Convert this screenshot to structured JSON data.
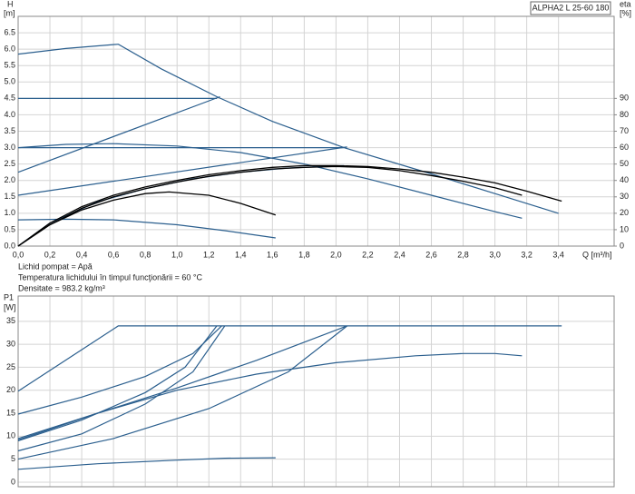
{
  "chart_data": [
    {
      "type": "line",
      "title": "ALPHA2 L 25-60 180",
      "ylabel": "H",
      "yunit": "[m]",
      "y2label": "eta",
      "y2unit": "[%]",
      "xlabel": "Q [m³/h]",
      "notes": [
        "Lichid pompat = Apă",
        "Temperatura lichidului în timpul funcţionării = 60 °C",
        "Densitate = 983.2 kg/m³"
      ],
      "xlim": [
        0,
        3.75
      ],
      "ylim": [
        0,
        7
      ],
      "y2lim": [
        0,
        140
      ],
      "grid": true,
      "xticks": [
        {
          "value": 0,
          "label": "0,0"
        },
        {
          "value": 0.2,
          "label": "0,2"
        },
        {
          "value": 0.4,
          "label": "0,4"
        },
        {
          "value": 0.6,
          "label": "0,6"
        },
        {
          "value": 0.8,
          "label": "0,8"
        },
        {
          "value": 1.0,
          "label": "1,0"
        },
        {
          "value": 1.2,
          "label": "1,2"
        },
        {
          "value": 1.4,
          "label": "1,4"
        },
        {
          "value": 1.6,
          "label": "1,6"
        },
        {
          "value": 1.8,
          "label": "1,8"
        },
        {
          "value": 2.0,
          "label": "2,0"
        },
        {
          "value": 2.2,
          "label": "2,2"
        },
        {
          "value": 2.4,
          "label": "2,4"
        },
        {
          "value": 2.6,
          "label": "2,6"
        },
        {
          "value": 2.8,
          "label": "2,8"
        },
        {
          "value": 3.0,
          "label": "3,0"
        },
        {
          "value": 3.2,
          "label": "3,2"
        },
        {
          "value": 3.4,
          "label": "3,4"
        }
      ],
      "yticks": [
        {
          "value": 0,
          "label": "0.0"
        },
        0.5,
        {
          "value": 1,
          "label": "1.0"
        },
        1.5,
        {
          "value": 2,
          "label": "2.0"
        },
        2.5,
        {
          "value": 3,
          "label": "3.0"
        },
        3.5,
        {
          "value": 4,
          "label": "4.0"
        },
        4.5,
        {
          "value": 5,
          "label": "5.0"
        },
        5.5,
        {
          "value": 6,
          "label": "6.0"
        },
        6.5
      ],
      "y2ticks": [
        0,
        10,
        20,
        30,
        40,
        50,
        60,
        70,
        80,
        90
      ],
      "series": [
        {
          "color": "#2b5f8e",
          "x": [
            0,
            0.3,
            0.63,
            0.9,
            1.25,
            1.6,
            2.05,
            2.6,
            3.0,
            3.4
          ],
          "values": [
            5.85,
            6.02,
            6.15,
            5.4,
            4.55,
            3.8,
            3.0,
            2.2,
            1.6,
            1.0
          ]
        },
        {
          "color": "#2b5f8e",
          "x": [
            0,
            1.25
          ],
          "values": [
            4.5,
            4.5
          ]
        },
        {
          "color": "#2b5f8e",
          "x": [
            0,
            2.05
          ],
          "values": [
            3.0,
            3.0
          ]
        },
        {
          "color": "#2b5f8e",
          "x": [
            0,
            1.27
          ],
          "values": [
            2.25,
            4.55
          ]
        },
        {
          "color": "#2b5f8e",
          "x": [
            0,
            2.07
          ],
          "values": [
            1.55,
            3.02
          ]
        },
        {
          "color": "#2b5f8e",
          "x": [
            0,
            0.3,
            0.6,
            1.0,
            1.4,
            1.8,
            2.2,
            2.6,
            3.0,
            3.17
          ],
          "values": [
            3.0,
            3.1,
            3.12,
            3.05,
            2.85,
            2.5,
            2.05,
            1.55,
            1.05,
            0.85
          ]
        },
        {
          "color": "#2b5f8e",
          "x": [
            0,
            0.3,
            0.6,
            1.0,
            1.3,
            1.62
          ],
          "values": [
            0.8,
            0.82,
            0.8,
            0.65,
            0.47,
            0.25
          ]
        },
        {
          "color": "#2b5f8e",
          "x": [
            0,
            0.2,
            0.5,
            0.8,
            1.1,
            1.4,
            1.7,
            2.05
          ],
          "values": [
            0,
            0.7,
            1.35,
            1.75,
            2.05,
            2.25,
            2.38,
            2.45
          ]
        },
        {
          "color": "#000000",
          "axis": "y2",
          "x": [
            0,
            0.2,
            0.4,
            0.6,
            0.8,
            1.0,
            1.2,
            1.4,
            1.6,
            1.8,
            2.0,
            2.2,
            2.4,
            2.6,
            2.8,
            3.0,
            3.2,
            3.42
          ],
          "values": [
            0,
            14,
            24,
            31,
            36,
            40,
            43.5,
            46,
            48,
            49,
            49,
            48.5,
            47,
            45,
            42,
            38.5,
            33.5,
            27.4
          ]
        },
        {
          "color": "#000000",
          "axis": "y2",
          "x": [
            0,
            0.2,
            0.4,
            0.6,
            0.8,
            1.0,
            1.2,
            1.4,
            1.6,
            1.8,
            2.0,
            2.2,
            2.4,
            2.6,
            2.8,
            3.0,
            3.17
          ],
          "values": [
            0,
            13,
            23,
            30,
            35,
            39,
            42.5,
            45,
            47,
            48,
            48.5,
            48,
            46,
            43,
            39.5,
            35.5,
            31
          ]
        },
        {
          "color": "#000000",
          "axis": "y2",
          "x": [
            0,
            0.2,
            0.4,
            0.6,
            0.8,
            0.95,
            1.2,
            1.4,
            1.62
          ],
          "values": [
            0,
            13,
            22,
            28,
            32,
            33,
            31,
            26,
            19
          ]
        }
      ]
    },
    {
      "type": "line",
      "ylabel": "P1",
      "yunit": "[W]",
      "xlim": [
        0,
        3.75
      ],
      "ylim": [
        -1,
        40.5
      ],
      "grid": true,
      "yticks": [
        0,
        5,
        10,
        15,
        20,
        25,
        30,
        35
      ],
      "series": [
        {
          "color": "#2b5f8e",
          "x": [
            0,
            0.63,
            3.42
          ],
          "values": [
            19.8,
            34,
            34
          ]
        },
        {
          "color": "#2b5f8e",
          "x": [
            0,
            0.4,
            0.8,
            1.1,
            1.28
          ],
          "values": [
            14.8,
            18.5,
            23,
            28,
            34
          ]
        },
        {
          "color": "#2b5f8e",
          "x": [
            0,
            0.4,
            0.8,
            1.05,
            1.25
          ],
          "values": [
            9,
            13.5,
            19.5,
            25,
            34
          ]
        },
        {
          "color": "#2b5f8e",
          "x": [
            0,
            0.4,
            0.8,
            1.1,
            1.3
          ],
          "values": [
            6.8,
            10.5,
            17,
            24,
            34
          ]
        },
        {
          "color": "#2b5f8e",
          "x": [
            0,
            0.5,
            1.0,
            1.5,
            2.07
          ],
          "values": [
            9.5,
            15,
            20.5,
            26.5,
            34
          ]
        },
        {
          "color": "#2b5f8e",
          "x": [
            0,
            0.6,
            1.2,
            1.7,
            2.07
          ],
          "values": [
            5,
            9.5,
            16,
            24,
            34
          ]
        },
        {
          "color": "#2b5f8e",
          "x": [
            0,
            0.5,
            1.0,
            1.5,
            2.0,
            2.5,
            2.8,
            3.0,
            3.17
          ],
          "values": [
            9.2,
            15,
            20,
            23.5,
            26,
            27.5,
            28,
            28,
            27.5
          ]
        },
        {
          "color": "#2b5f8e",
          "x": [
            0,
            0.5,
            1.0,
            1.3,
            1.62
          ],
          "values": [
            2.8,
            4,
            4.8,
            5.2,
            5.3
          ]
        }
      ]
    }
  ]
}
